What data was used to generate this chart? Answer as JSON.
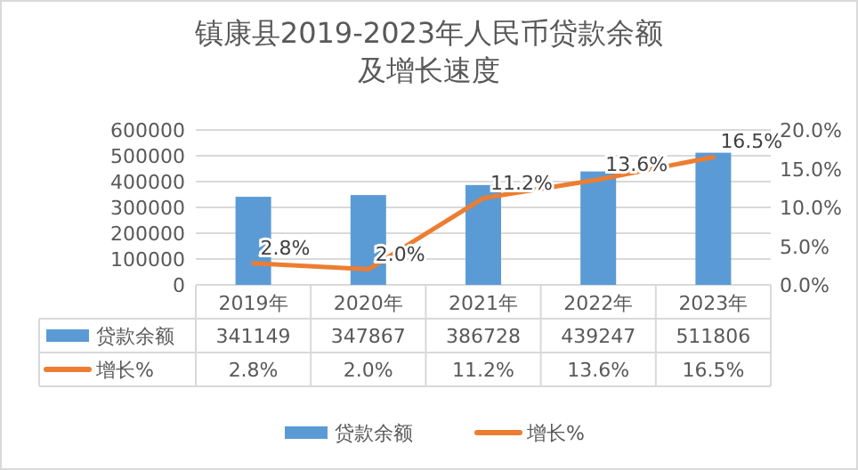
{
  "chart_data": {
    "type": "bar",
    "title": "镇康县2019-2023年人民币贷款余额及增长速度",
    "categories": [
      "2019年",
      "2020年",
      "2021年",
      "2022年",
      "2023年"
    ],
    "series": [
      {
        "name": "贷款余额",
        "color": "#5b9bd5",
        "values": [
          341149,
          347867,
          386728,
          439247,
          511806
        ],
        "value_labels": [
          "341149",
          "347867",
          "386728",
          "439247",
          "511806"
        ]
      },
      {
        "name": "增长%",
        "type": "line",
        "axis": "y2",
        "color": "#ed7d31",
        "values": [
          2.8,
          2.0,
          11.2,
          13.6,
          16.5
        ],
        "value_labels": [
          "2.8%",
          "2.0%",
          "11.2%",
          "13.6%",
          "16.5%"
        ]
      }
    ],
    "ylim": [
      0,
      600000
    ],
    "yticks": [
      0,
      100000,
      200000,
      300000,
      400000,
      500000,
      600000
    ],
    "y2lim": [
      0,
      20
    ],
    "y2ticks": [
      {
        "value": 0,
        "label": "0.0%"
      },
      {
        "value": 5,
        "label": "5.0%"
      },
      {
        "value": 10,
        "label": "10.0%"
      },
      {
        "value": 15,
        "label": "15.0%"
      },
      {
        "value": 20,
        "label": "20.0%"
      }
    ],
    "grid": "y",
    "legend": "bottom",
    "marker": "none",
    "line_style": "solid"
  }
}
